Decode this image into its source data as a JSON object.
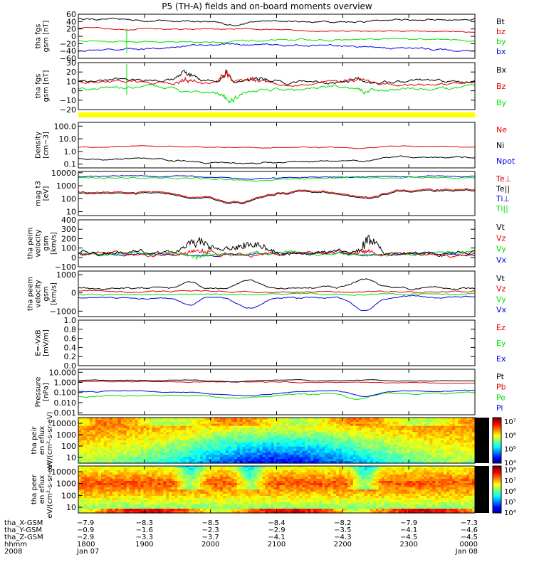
{
  "title": "P5 (TH-A) fields and on-board moments overview",
  "colors": {
    "black": "#000000",
    "red": "#e00000",
    "green": "#00e000",
    "blue": "#0000e0",
    "yellow": "#ffff00"
  },
  "chart_data": [
    {
      "id": "fgs_mag",
      "type": "line",
      "ylabel": "tha fgs gsm [nT]",
      "yticks": [
        "60",
        "40",
        "20",
        "0",
        "−20",
        "−40",
        "−60"
      ],
      "ylim": [
        -60,
        60
      ],
      "series": [
        {
          "name": "Bt",
          "color": "black"
        },
        {
          "name": "bz",
          "color": "red"
        },
        {
          "name": "by",
          "color": "green"
        },
        {
          "name": "bx",
          "color": "blue"
        }
      ]
    },
    {
      "id": "fgs_zoom",
      "type": "line",
      "ylabel": "tha fgs gsm [nT]",
      "yticks": [
        "30",
        "20",
        "10",
        "0",
        "−10",
        "−20"
      ],
      "ylim": [
        -28,
        30
      ],
      "series": [
        {
          "name": "Bx",
          "color": "black"
        },
        {
          "name": "Bz",
          "color": "red"
        },
        {
          "name": "By",
          "color": "green"
        }
      ]
    },
    {
      "id": "density",
      "type": "line",
      "ylabel": "Density [cm−3]",
      "yticks": [
        "100.0",
        "10.0",
        "1.0",
        "0.1"
      ],
      "scale": "log",
      "series": [
        {
          "name": "Ne",
          "color": "red"
        },
        {
          "name": "Ni",
          "color": "black"
        },
        {
          "name": "Npot",
          "color": "blue"
        }
      ]
    },
    {
      "id": "temps",
      "type": "line",
      "ylabel": "mag t3 [eV]",
      "yticks": [
        "10000",
        "1000",
        "100",
        "10"
      ],
      "scale": "log",
      "series": [
        {
          "name": "Te⊥",
          "color": "red"
        },
        {
          "name": "Te||",
          "color": "black"
        },
        {
          "name": "Ti⊥",
          "color": "blue"
        },
        {
          "name": "Ti||",
          "color": "green"
        }
      ]
    },
    {
      "id": "peir_vel",
      "type": "line",
      "ylabel": "tha peim velocity gsm [km/s]",
      "yticks": [
        "400",
        "300",
        "200",
        "100",
        "0",
        "−100"
      ],
      "ylim": [
        -150,
        400
      ],
      "series": [
        {
          "name": "Vt",
          "color": "black"
        },
        {
          "name": "Vz",
          "color": "red"
        },
        {
          "name": "Vy",
          "color": "green"
        },
        {
          "name": "Vx",
          "color": "blue"
        }
      ]
    },
    {
      "id": "peer_vel",
      "type": "line",
      "ylabel": "tha peem velocity gsm [km/s]",
      "yticks": [
        "1000",
        "0",
        "−1000"
      ],
      "ylim": [
        -1300,
        1200
      ],
      "series": [
        {
          "name": "Vt",
          "color": "black"
        },
        {
          "name": "Vz",
          "color": "red"
        },
        {
          "name": "Vy",
          "color": "green"
        },
        {
          "name": "Vx",
          "color": "blue"
        }
      ]
    },
    {
      "id": "efield",
      "type": "line",
      "ylabel": "E=-VxB [mV/m]",
      "yticks": [
        "1.0",
        "0.8",
        "0.6",
        "0.4",
        "0.2",
        "0.0"
      ],
      "ylim": [
        0,
        1
      ],
      "series": [
        {
          "name": "Ez",
          "color": "red"
        },
        {
          "name": "Ey",
          "color": "green"
        },
        {
          "name": "Ex",
          "color": "blue"
        }
      ]
    },
    {
      "id": "pressure",
      "type": "line",
      "ylabel": "Pressure [nPa]",
      "yticks": [
        "10.000",
        "1.000",
        "0.100",
        "0.010",
        "0.001"
      ],
      "scale": "log",
      "series": [
        {
          "name": "Pt",
          "color": "black"
        },
        {
          "name": "Pb",
          "color": "red"
        },
        {
          "name": "Pe",
          "color": "green"
        },
        {
          "name": "Pi",
          "color": "blue"
        }
      ]
    },
    {
      "id": "peir_spec",
      "type": "heatmap",
      "ylabel": "tha peir en eflux eV/(cm²-s-sr-eV)",
      "yticks": [
        "10000",
        "1000",
        "100",
        "10"
      ],
      "colorbar": [
        "10⁷",
        "10⁶",
        "10⁵",
        "10⁴"
      ]
    },
    {
      "id": "peer_spec",
      "type": "heatmap",
      "ylabel": "tha peer en eflux eV/(cm²-s-sr-eV)",
      "yticks": [
        "10000",
        "1000",
        "100",
        "10"
      ],
      "colorbar": [
        "10⁸",
        "10⁷",
        "10⁶",
        "10⁵",
        "10⁴"
      ]
    }
  ],
  "x_axis": {
    "row_labels": [
      "tha_X-GSM",
      "tha_Y-GSM",
      "tha_Z-GSM",
      "hhmm",
      "2008"
    ],
    "ticks": [
      {
        "x": "−7.9",
        "y": "−0.9",
        "z": "−2.9",
        "t": "1800",
        "d": "Jan 07"
      },
      {
        "x": "−8.3",
        "y": "−1.6",
        "z": "−3.3",
        "t": "1900",
        "d": ""
      },
      {
        "x": "−8.5",
        "y": "−2.3",
        "z": "−3.7",
        "t": "2000",
        "d": ""
      },
      {
        "x": "−8.4",
        "y": "−2.9",
        "z": "−4.1",
        "t": "2100",
        "d": ""
      },
      {
        "x": "−8.2",
        "y": "−3.5",
        "z": "−4.3",
        "t": "2200",
        "d": ""
      },
      {
        "x": "−7.9",
        "y": "−4.1",
        "z": "−4.5",
        "t": "2300",
        "d": ""
      },
      {
        "x": "−7.3",
        "y": "−4.6",
        "z": "−4.5",
        "t": "0000",
        "d": "Jan 08"
      }
    ]
  }
}
